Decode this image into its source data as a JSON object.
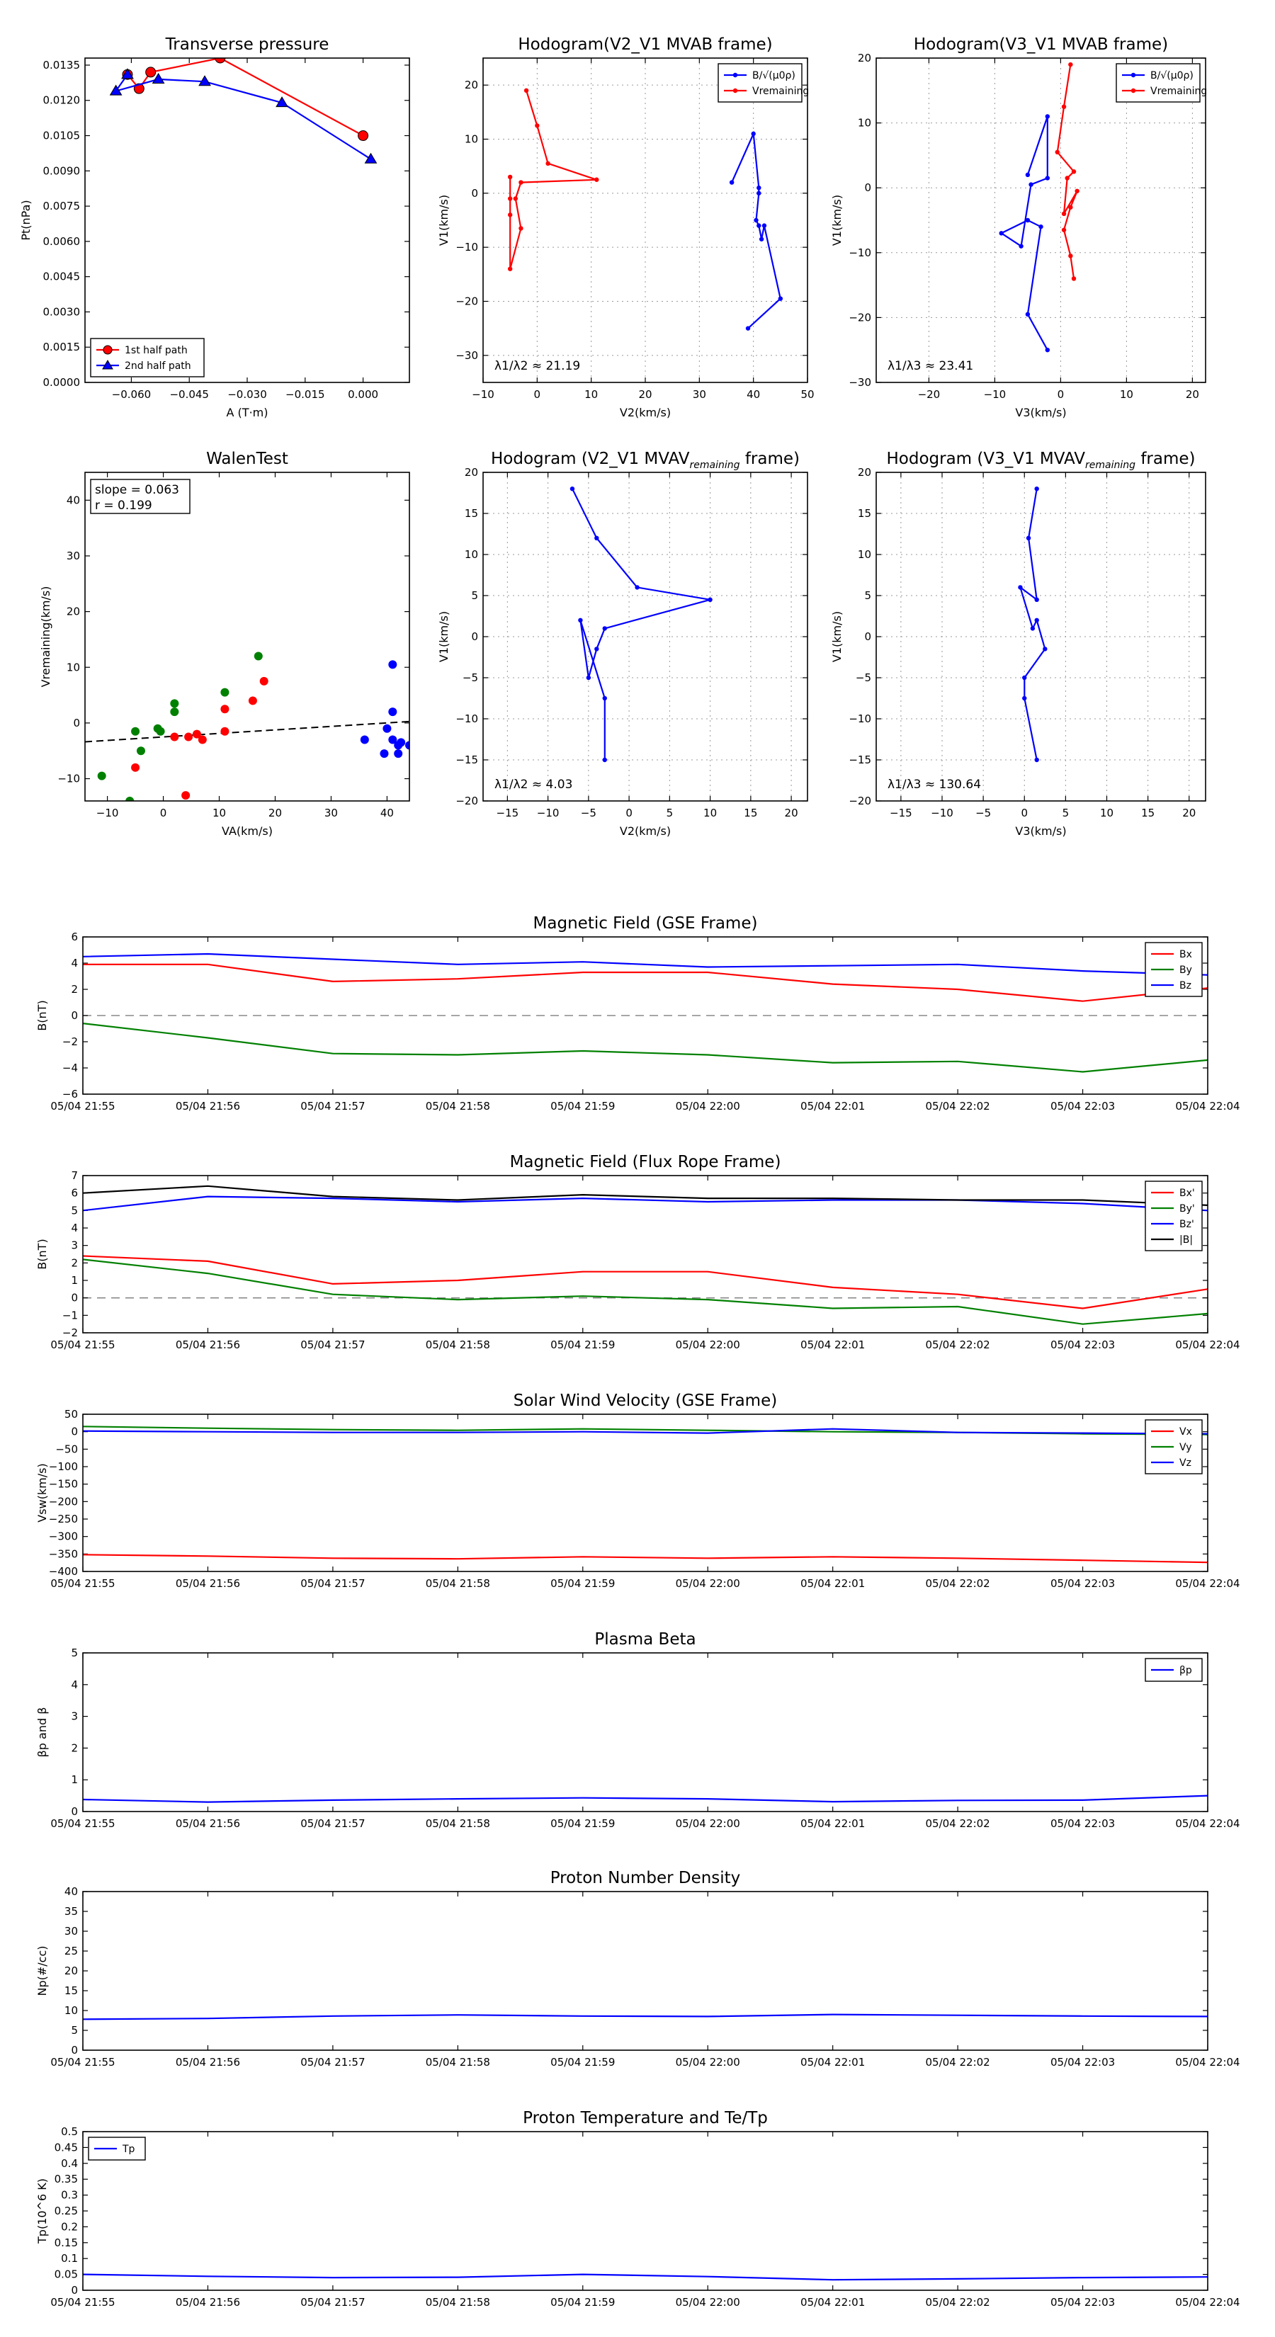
{
  "chart_data": [
    {
      "id": "transverse-pressure",
      "type": "scatter",
      "title": "Transverse pressure",
      "xlabel": "A (T·m)",
      "ylabel": "Pt(nPa)",
      "xlim": [
        -0.072,
        0.012
      ],
      "ylim": [
        0,
        0.0138
      ],
      "xticks": [
        -0.06,
        -0.045,
        -0.03,
        -0.015,
        0.0
      ],
      "xtick_labels": [
        "−0.060",
        "−0.045",
        "−0.030",
        "−0.015",
        "0.000"
      ],
      "yticks": [
        0,
        0.0015,
        0.003,
        0.0045,
        0.006,
        0.0075,
        0.009,
        0.0105,
        0.012,
        0.0135
      ],
      "ytick_labels": [
        "0.0000",
        "0.0015",
        "0.0030",
        "0.0045",
        "0.0060",
        "0.0075",
        "0.0090",
        "0.0105",
        "0.0120",
        "0.0135"
      ],
      "legend": {
        "position": "lower-left",
        "entries": [
          "1st half path",
          "2nd half path"
        ]
      },
      "series": [
        {
          "name": "1st half path",
          "color": "#ff0000",
          "marker": "circle",
          "x": [
            0.0,
            -0.037,
            -0.055,
            -0.058,
            -0.061
          ],
          "y": [
            0.0105,
            0.0138,
            0.0132,
            0.0125,
            0.0131
          ]
        },
        {
          "name": "2nd half path",
          "color": "#0000ff",
          "marker": "triangle",
          "x": [
            -0.061,
            -0.064,
            -0.053,
            -0.041,
            -0.021,
            0.002
          ],
          "y": [
            0.0131,
            0.0124,
            0.0129,
            0.0128,
            0.0119,
            0.0095
          ]
        }
      ]
    },
    {
      "id": "hodogram-v2-v1-mvab",
      "type": "line",
      "title": "Hodogram(V2_V1 MVAB frame)",
      "xlabel": "V2(km/s)",
      "ylabel": "V1(km/s)",
      "xlim": [
        -10,
        50
      ],
      "ylim": [
        -35,
        25
      ],
      "xticks": [
        -10,
        0,
        10,
        20,
        30,
        40,
        50
      ],
      "yticks": [
        -30,
        -20,
        -10,
        0,
        10,
        20
      ],
      "grid": true,
      "annotation": "λ1/λ2 ≈ 21.19",
      "legend": {
        "position": "top-right",
        "entries": [
          "B/√(μ0ρ)",
          "Vremaining"
        ]
      },
      "series": [
        {
          "name": "B/√(μ0ρ)",
          "color": "#0000ff",
          "x": [
            36,
            40,
            41,
            41,
            40.5,
            41,
            41.5,
            42,
            45,
            39
          ],
          "y": [
            2,
            11,
            1,
            0,
            -5,
            -6,
            -8.5,
            -6,
            -19.5,
            -25
          ]
        },
        {
          "name": "Vremaining",
          "color": "#ff0000",
          "x": [
            -2,
            0,
            2,
            11,
            -3,
            -4,
            -3,
            -5,
            -5,
            -5,
            -5
          ],
          "y": [
            19,
            12.5,
            5.5,
            2.5,
            2,
            -1,
            -6.5,
            -14,
            -4,
            -1,
            3
          ]
        }
      ]
    },
    {
      "id": "hodogram-v3-v1-mvab",
      "type": "line",
      "title": "Hodogram(V3_V1 MVAB frame)",
      "xlabel": "V3(km/s)",
      "ylabel": "V1(km/s)",
      "xlim": [
        -28,
        22
      ],
      "ylim": [
        -30,
        20
      ],
      "xticks": [
        -20,
        -10,
        0,
        10,
        20
      ],
      "yticks": [
        -30,
        -20,
        -10,
        0,
        10,
        20
      ],
      "grid": true,
      "annotation": "λ1/λ3 ≈ 23.41",
      "legend": {
        "position": "top-right",
        "entries": [
          "B/√(μ0ρ)",
          "Vremaining"
        ]
      },
      "series": [
        {
          "name": "B/√(μ0ρ)",
          "color": "#0000ff",
          "x": [
            -5,
            -2,
            -2,
            -4.5,
            -6,
            -9,
            -5,
            -3,
            -5,
            -2
          ],
          "y": [
            2,
            11,
            1.5,
            0.5,
            -9,
            -7,
            -5,
            -6,
            -19.5,
            -25
          ]
        },
        {
          "name": "Vremaining",
          "color": "#ff0000",
          "x": [
            1.5,
            0.5,
            -0.5,
            2,
            1,
            0.5,
            2.5,
            1.5,
            0.5,
            1.5,
            2
          ],
          "y": [
            19,
            12.5,
            5.5,
            2.5,
            1.5,
            -4,
            -0.5,
            -3,
            -6.5,
            -10.5,
            -14
          ]
        }
      ]
    },
    {
      "id": "walen-test",
      "type": "scatter",
      "title": "WalenTest",
      "xlabel": "VA(km/s)",
      "ylabel": "Vremaining(km/s)",
      "xlim": [
        -14,
        44
      ],
      "ylim": [
        -14,
        45
      ],
      "xticks": [
        -10,
        0,
        10,
        20,
        30,
        40
      ],
      "yticks": [
        -10,
        0,
        10,
        20,
        30,
        40
      ],
      "annotation_lines": [
        "slope = 0.063",
        "r = 0.199"
      ],
      "fit_line": {
        "slope": 0.063,
        "intercept": -2.5
      },
      "series": [
        {
          "name": "",
          "color": "#008000",
          "x": [
            -11,
            -5,
            -4,
            -1,
            -0.5,
            2,
            2,
            11,
            17,
            -6
          ],
          "y": [
            -9.5,
            -1.5,
            -5,
            -1,
            -1.5,
            2,
            3.5,
            5.5,
            12,
            -14
          ]
        },
        {
          "name": "",
          "color": "#ff0000",
          "x": [
            -5,
            2,
            4,
            4.5,
            6,
            7,
            11,
            16,
            18,
            11
          ],
          "y": [
            -8,
            -2.5,
            -13,
            -2.5,
            -2,
            -3,
            2.5,
            4,
            7.5,
            -1.5
          ]
        },
        {
          "name": "",
          "color": "#0000ff",
          "x": [
            36,
            39.5,
            40,
            41,
            41,
            41,
            42,
            42,
            42.5,
            44
          ],
          "y": [
            -3,
            -5.5,
            -1,
            -3,
            2,
            10.5,
            -5.5,
            -4,
            -3.5,
            -4
          ]
        }
      ]
    },
    {
      "id": "hodogram-v2-v1-mvav",
      "type": "line",
      "title": "Hodogram (V2_V1 MVAV",
      "title_subscript": "remaining",
      "title_suffix": " frame)",
      "xlabel": "V2(km/s)",
      "ylabel": "V1(km/s)",
      "xlim": [
        -18,
        22
      ],
      "ylim": [
        -20,
        20
      ],
      "xticks": [
        -15,
        -10,
        -5,
        0,
        5,
        10,
        15,
        20
      ],
      "yticks": [
        -20,
        -15,
        -10,
        -5,
        0,
        5,
        10,
        15,
        20
      ],
      "grid": true,
      "annotation": "λ1/λ2 ≈ 4.03",
      "series": [
        {
          "name": "",
          "color": "#0000ff",
          "x": [
            -7,
            -4,
            1,
            10,
            -3,
            -4,
            -5,
            -6,
            -3,
            -3
          ],
          "y": [
            18,
            12,
            6,
            4.5,
            1,
            -1.5,
            -5,
            2,
            -7.5,
            -15
          ]
        }
      ]
    },
    {
      "id": "hodogram-v3-v1-mvav",
      "type": "line",
      "title": "Hodogram (V3_V1 MVAV",
      "title_subscript": "remaining",
      "title_suffix": " frame)",
      "xlabel": "V3(km/s)",
      "ylabel": "V1(km/s)",
      "xlim": [
        -18,
        22
      ],
      "ylim": [
        -20,
        20
      ],
      "xticks": [
        -15,
        -10,
        -5,
        0,
        5,
        10,
        15,
        20
      ],
      "yticks": [
        -20,
        -15,
        -10,
        -5,
        0,
        5,
        10,
        15,
        20
      ],
      "grid": true,
      "annotation": "λ1/λ3 ≈ 130.64",
      "series": [
        {
          "name": "",
          "color": "#0000ff",
          "x": [
            1.5,
            0.5,
            1.5,
            -0.5,
            1,
            1.5,
            2.5,
            0,
            0,
            1.5
          ],
          "y": [
            18,
            12,
            4.5,
            6,
            1,
            2,
            -1.5,
            -5,
            -7.5,
            -15
          ]
        }
      ]
    },
    {
      "id": "magnetic-field-gse",
      "type": "line",
      "title": "Magnetic Field (GSE Frame)",
      "xlabel": "",
      "ylabel": "B(nT)",
      "xlim": [
        0,
        9
      ],
      "ylim": [
        -6,
        6
      ],
      "yticks": [
        -6,
        -4,
        -2,
        0,
        2,
        4,
        6
      ],
      "categories": [
        "05/04 21:55",
        "05/04 21:56",
        "05/04 21:57",
        "05/04 21:58",
        "05/04 21:59",
        "05/04 22:00",
        "05/04 22:01",
        "05/04 22:02",
        "05/04 22:03",
        "05/04 22:04"
      ],
      "zero_line": true,
      "legend": {
        "position": "top-right",
        "entries": [
          "Bx",
          "By",
          "Bz"
        ]
      },
      "series": [
        {
          "name": "Bx",
          "color": "#ff0000",
          "values": [
            3.9,
            3.9,
            2.6,
            2.8,
            3.3,
            3.3,
            2.4,
            2.0,
            1.1,
            2.1
          ]
        },
        {
          "name": "By",
          "color": "#008000",
          "values": [
            -0.6,
            -1.7,
            -2.9,
            -3.0,
            -2.7,
            -3.0,
            -3.6,
            -3.5,
            -4.3,
            -3.4
          ]
        },
        {
          "name": "Bz",
          "color": "#0000ff",
          "values": [
            4.5,
            4.7,
            4.3,
            3.9,
            4.1,
            3.7,
            3.8,
            3.9,
            3.4,
            3.1
          ]
        }
      ]
    },
    {
      "id": "magnetic-field-flux-rope",
      "type": "line",
      "title": "Magnetic Field (Flux Rope Frame)",
      "xlabel": "",
      "ylabel": "B(nT)",
      "xlim": [
        0,
        9
      ],
      "ylim": [
        -2,
        7
      ],
      "yticks": [
        -2,
        -1,
        0,
        1,
        2,
        3,
        4,
        5,
        6,
        7
      ],
      "categories": [
        "05/04 21:55",
        "05/04 21:56",
        "05/04 21:57",
        "05/04 21:58",
        "05/04 21:59",
        "05/04 22:00",
        "05/04 22:01",
        "05/04 22:02",
        "05/04 22:03",
        "05/04 22:04"
      ],
      "zero_line": true,
      "legend": {
        "position": "top-right",
        "entries": [
          "Bx'",
          "By'",
          "Bz'",
          "|B|"
        ]
      },
      "series": [
        {
          "name": "Bx'",
          "color": "#ff0000",
          "values": [
            2.4,
            2.1,
            0.8,
            1.0,
            1.5,
            1.5,
            0.6,
            0.2,
            -0.6,
            0.5
          ]
        },
        {
          "name": "By'",
          "color": "#008000",
          "values": [
            2.2,
            1.4,
            0.2,
            -0.1,
            0.1,
            -0.1,
            -0.6,
            -0.5,
            -1.5,
            -0.9
          ]
        },
        {
          "name": "Bz'",
          "color": "#0000ff",
          "values": [
            5.0,
            5.8,
            5.7,
            5.5,
            5.7,
            5.5,
            5.6,
            5.6,
            5.4,
            5.0
          ]
        },
        {
          "name": "|B|",
          "color": "#000000",
          "values": [
            6.0,
            6.4,
            5.8,
            5.6,
            5.9,
            5.7,
            5.7,
            5.6,
            5.6,
            5.3
          ]
        }
      ]
    },
    {
      "id": "solar-wind-velocity",
      "type": "line",
      "title": "Solar Wind Velocity (GSE Frame)",
      "xlabel": "",
      "ylabel": "Vsw(km/s)",
      "xlim": [
        0,
        9
      ],
      "ylim": [
        -400,
        50
      ],
      "yticks": [
        -400,
        -350,
        -300,
        -250,
        -200,
        -150,
        -100,
        -50,
        0,
        50
      ],
      "categories": [
        "05/04 21:55",
        "05/04 21:56",
        "05/04 21:57",
        "05/04 21:58",
        "05/04 21:59",
        "05/04 22:00",
        "05/04 22:01",
        "05/04 22:02",
        "05/04 22:03",
        "05/04 22:04"
      ],
      "legend": {
        "position": "top-right",
        "entries": [
          "Vx",
          "Vy",
          "Vz"
        ]
      },
      "series": [
        {
          "name": "Vx",
          "color": "#ff0000",
          "values": [
            -352,
            -356,
            -362,
            -364,
            -358,
            -362,
            -358,
            -362,
            -368,
            -374
          ]
        },
        {
          "name": "Vy",
          "color": "#008000",
          "values": [
            15,
            10,
            6,
            4,
            8,
            4,
            0,
            -2,
            -6,
            -8
          ]
        },
        {
          "name": "Vz",
          "color": "#0000ff",
          "values": [
            2,
            0,
            -2,
            -2,
            0,
            -4,
            8,
            -2,
            -4,
            -6
          ]
        }
      ]
    },
    {
      "id": "plasma-beta",
      "type": "line",
      "title": "Plasma Beta",
      "xlabel": "",
      "ylabel": "βp and β",
      "xlim": [
        0,
        9
      ],
      "ylim": [
        0,
        5
      ],
      "yticks": [
        0,
        1,
        2,
        3,
        4,
        5
      ],
      "categories": [
        "05/04 21:55",
        "05/04 21:56",
        "05/04 21:57",
        "05/04 21:58",
        "05/04 21:59",
        "05/04 22:00",
        "05/04 22:01",
        "05/04 22:02",
        "05/04 22:03",
        "05/04 22:04"
      ],
      "legend": {
        "position": "top-right",
        "entries": [
          "βp"
        ]
      },
      "series": [
        {
          "name": "βp",
          "color": "#0000ff",
          "values": [
            0.38,
            0.3,
            0.36,
            0.4,
            0.43,
            0.4,
            0.31,
            0.35,
            0.36,
            0.5
          ]
        }
      ]
    },
    {
      "id": "proton-number-density",
      "type": "line",
      "title": "Proton Number Density",
      "xlabel": "",
      "ylabel": "Np(#/cc)",
      "xlim": [
        0,
        9
      ],
      "ylim": [
        0,
        40
      ],
      "yticks": [
        0,
        5,
        10,
        15,
        20,
        25,
        30,
        35,
        40
      ],
      "categories": [
        "05/04 21:55",
        "05/04 21:56",
        "05/04 21:57",
        "05/04 21:58",
        "05/04 21:59",
        "05/04 22:00",
        "05/04 22:01",
        "05/04 22:02",
        "05/04 22:03",
        "05/04 22:04"
      ],
      "series": [
        {
          "name": "",
          "color": "#0000ff",
          "values": [
            7.8,
            8.0,
            8.6,
            8.9,
            8.6,
            8.5,
            9.0,
            8.8,
            8.6,
            8.5
          ]
        }
      ]
    },
    {
      "id": "proton-temperature",
      "type": "line",
      "title": "Proton Temperature and Te/Tp",
      "xlabel": "",
      "ylabel": "Tp(10^6 K)",
      "xlim": [
        0,
        9
      ],
      "ylim": [
        0,
        0.5
      ],
      "yticks": [
        0,
        0.05,
        0.1,
        0.15,
        0.2,
        0.25,
        0.3,
        0.35,
        0.4,
        0.45,
        0.5
      ],
      "categories": [
        "05/04 21:55",
        "05/04 21:56",
        "05/04 21:57",
        "05/04 21:58",
        "05/04 21:59",
        "05/04 22:00",
        "05/04 22:01",
        "05/04 22:02",
        "05/04 22:03",
        "05/04 22:04"
      ],
      "legend": {
        "position": "top-left",
        "entries": [
          "Tp"
        ]
      },
      "series": [
        {
          "name": "Tp",
          "color": "#0000ff",
          "values": [
            0.05,
            0.044,
            0.04,
            0.041,
            0.05,
            0.043,
            0.033,
            0.036,
            0.04,
            0.042
          ]
        }
      ]
    }
  ]
}
